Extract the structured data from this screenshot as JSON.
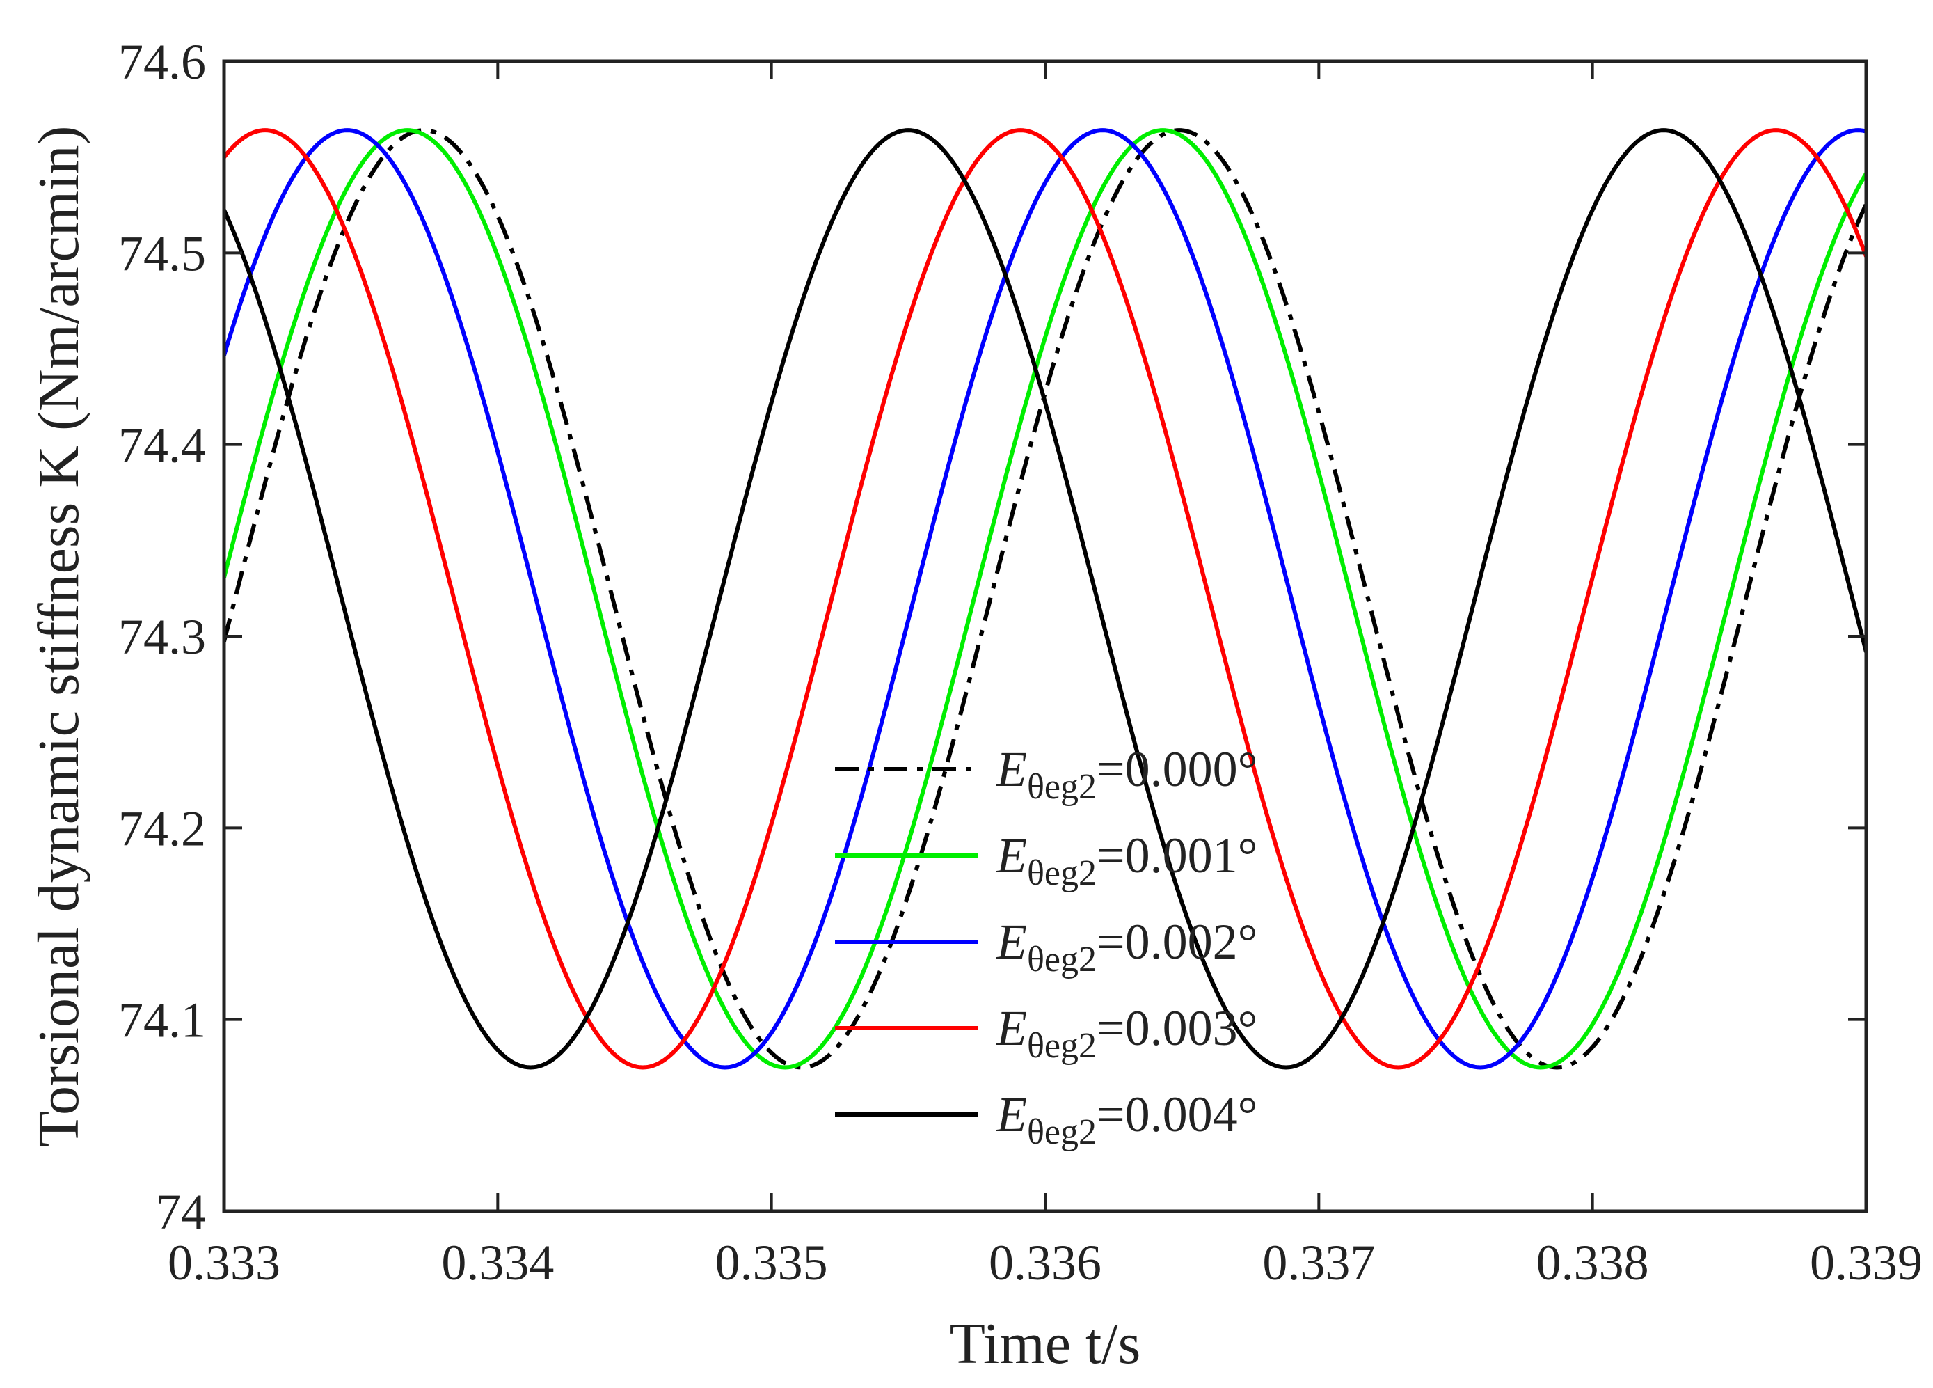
{
  "chart_data": {
    "type": "line",
    "title": "",
    "xlabel": "Time t/s",
    "ylabel": "Torsional dynamic stiffness K (Nm/arcmin)",
    "xlim": [
      0.333,
      0.339
    ],
    "ylim": [
      74.0,
      74.6
    ],
    "x_ticks": [
      "0.333",
      "0.334",
      "0.335",
      "0.336",
      "0.337",
      "0.338",
      "0.339"
    ],
    "y_ticks": [
      "74",
      "74.1",
      "74.2",
      "74.3",
      "74.4",
      "74.5",
      "74.6"
    ],
    "grid": false,
    "legend_position": "center-right",
    "model": {
      "mean": 74.3195,
      "amplitude": 0.2445,
      "period": 0.00276
    },
    "series": [
      {
        "name": "Eθeg2=0.000°",
        "label_main": "E",
        "label_sub": "θeg2",
        "label_value": "=0.000°",
        "color": "#000000",
        "dash": "dashdot",
        "peak_time": 0.33649
      },
      {
        "name": "Eθeg2=0.001°",
        "label_main": "E",
        "label_sub": "θeg2",
        "label_value": "=0.001°",
        "color": "#00ee00",
        "dash": "solid",
        "peak_time": 0.33643
      },
      {
        "name": "Eθeg2=0.002°",
        "label_main": "E",
        "label_sub": "θeg2",
        "label_value": "=0.002°",
        "color": "#0000ff",
        "dash": "solid",
        "peak_time": 0.33621
      },
      {
        "name": "Eθeg2=0.003°",
        "label_main": "E",
        "label_sub": "θeg2",
        "label_value": "=0.003°",
        "color": "#ff0000",
        "dash": "solid",
        "peak_time": 0.33591
      },
      {
        "name": "Eθeg2=0.004°",
        "label_main": "E",
        "label_sub": "θeg2",
        "label_value": "=0.004°",
        "color": "#000000",
        "dash": "solid",
        "peak_time": 0.3355
      }
    ]
  }
}
